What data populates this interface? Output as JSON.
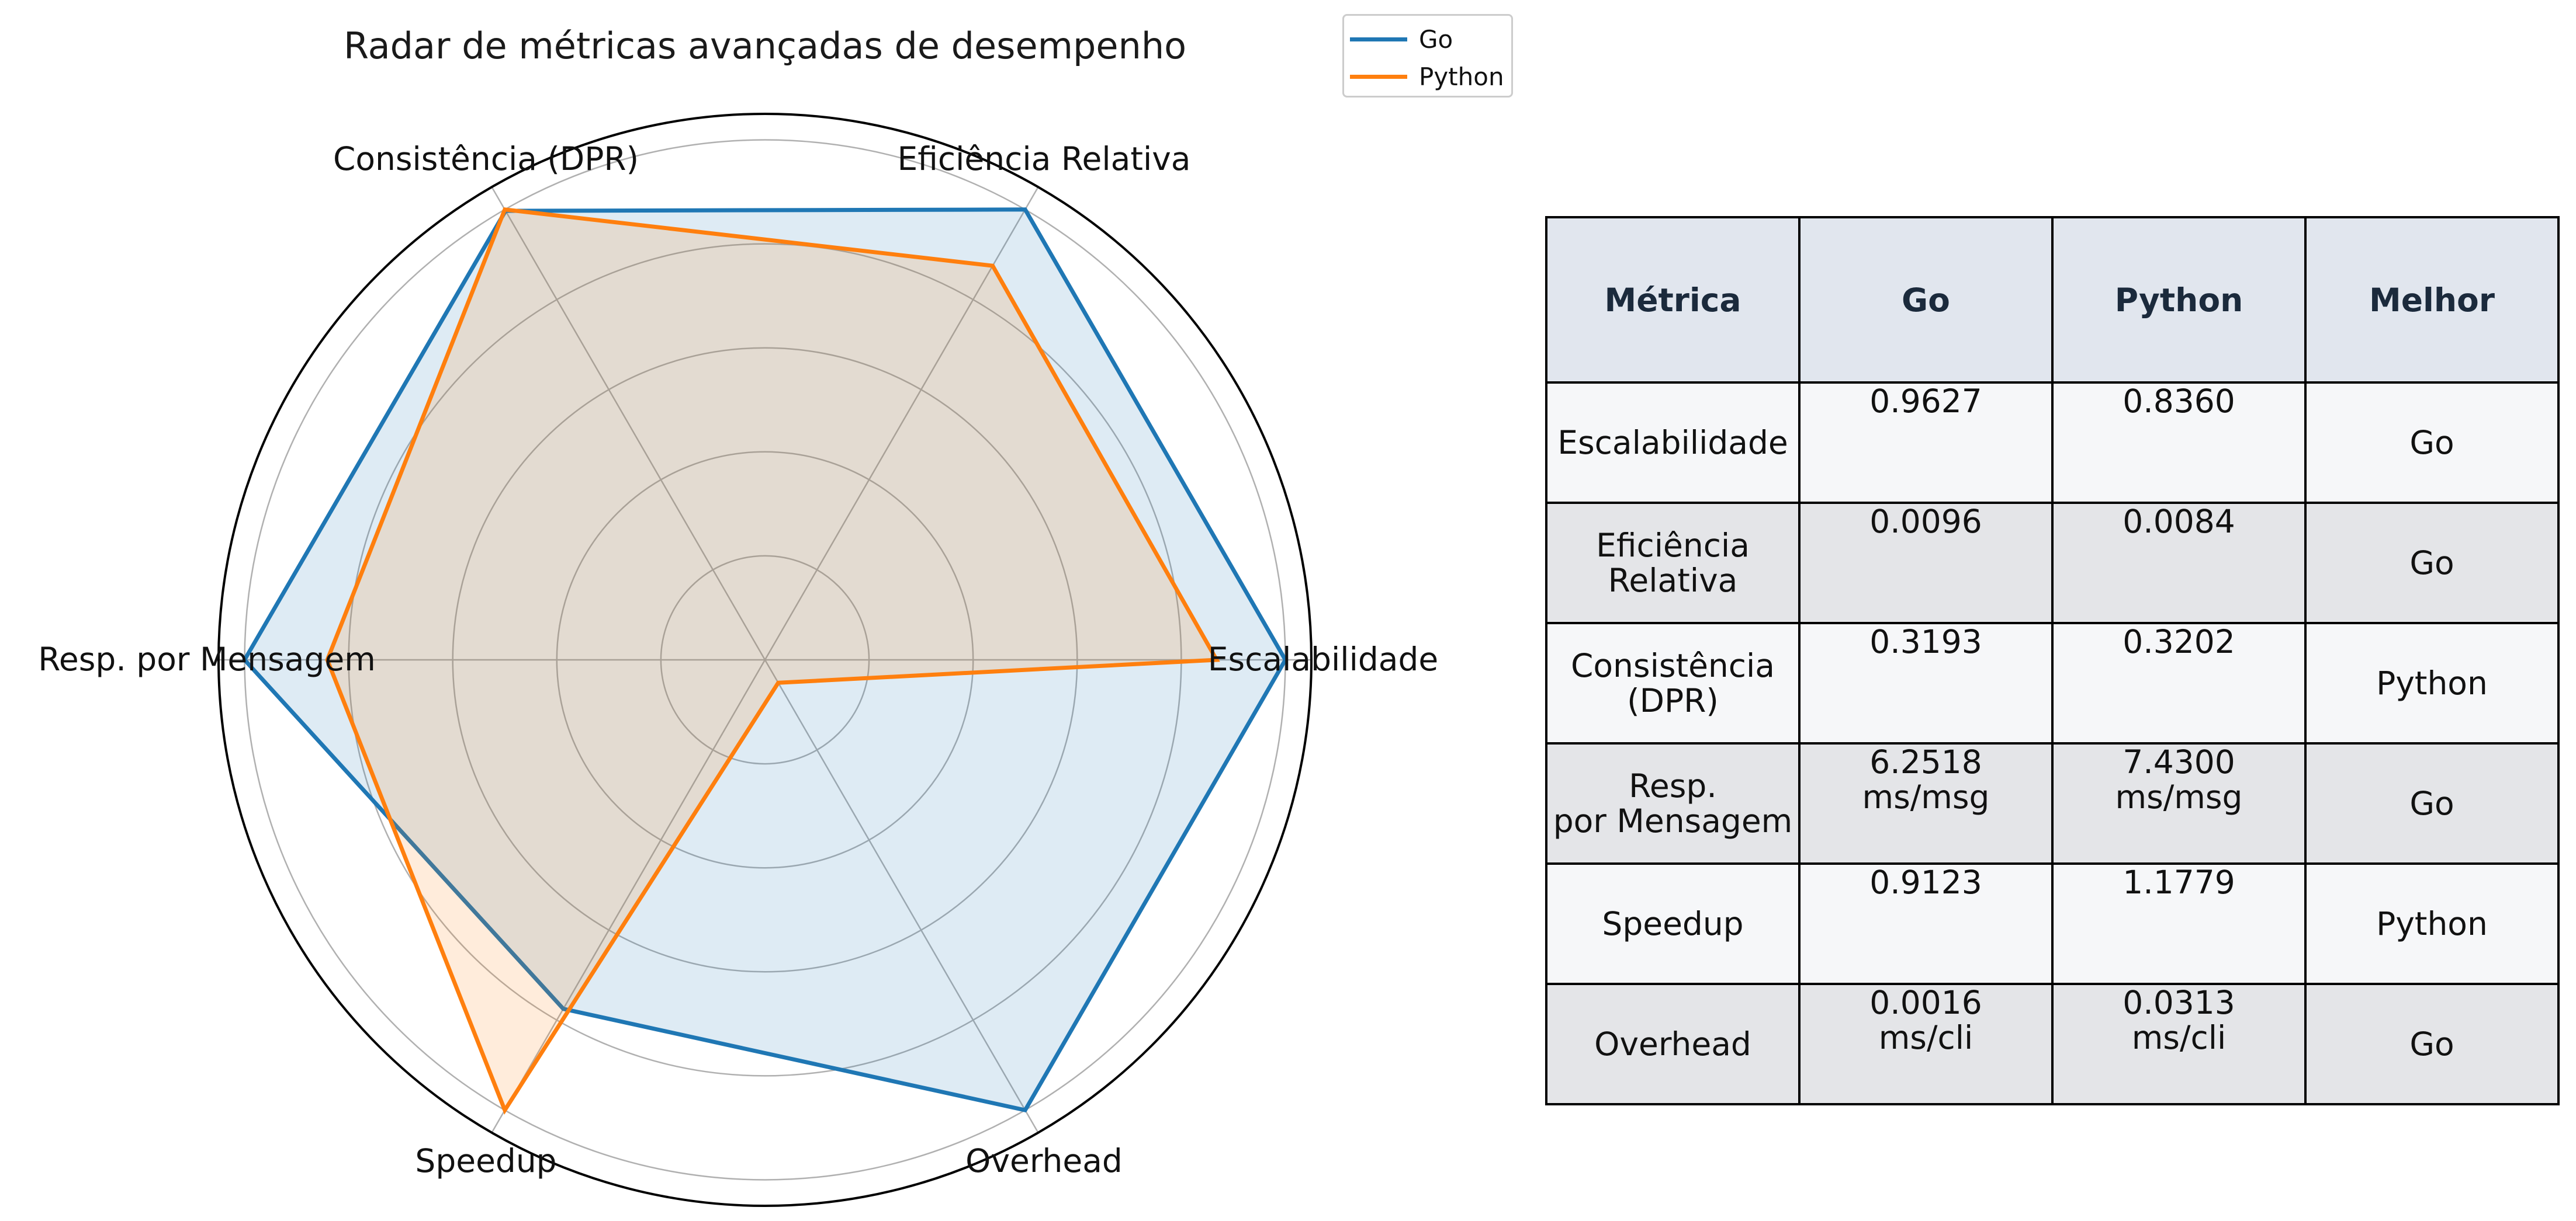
{
  "chart_data": {
    "type": "radar",
    "title": "Radar de métricas avançadas de desempenho",
    "axes": [
      "Escalabilidade",
      "Eficiência Relativa",
      "Consistência (DPR)",
      "Resp. por Mensagem",
      "Speedup",
      "Overhead"
    ],
    "rlim": [
      0,
      1.05
    ],
    "grid_levels": [
      0.2,
      0.4,
      0.6,
      0.8,
      1.0
    ],
    "grid": true,
    "legend_position": "top-right",
    "series": [
      {
        "name": "Go",
        "color": "#1f77b4",
        "values": [
          1.0,
          1.0,
          0.997,
          1.0,
          0.775,
          1.0
        ]
      },
      {
        "name": "Python",
        "color": "#ff7f0e",
        "values": [
          0.868,
          0.875,
          1.0,
          0.841,
          1.0,
          0.051
        ]
      }
    ]
  },
  "table": {
    "headers": [
      "Métrica",
      "Go",
      "Python",
      "Melhor"
    ],
    "rows": [
      {
        "metric": "Escalabilidade",
        "go": "0.9627",
        "python": "0.8360",
        "best": "Go"
      },
      {
        "metric": "Eficiência\nRelativa",
        "go": "0.0096",
        "python": "0.0084",
        "best": "Go"
      },
      {
        "metric": "Consistência\n(DPR)",
        "go": "0.3193",
        "python": "0.3202",
        "best": "Python"
      },
      {
        "metric": "Resp.\npor Mensagem",
        "go": "6.2518\nms/msg",
        "python": "7.4300\nms/msg",
        "best": "Go"
      },
      {
        "metric": "Speedup",
        "go": "0.9123",
        "python": "1.1779",
        "best": "Python"
      },
      {
        "metric": "Overhead",
        "go": "0.0016\nms/cli",
        "python": "0.0313\nms/cli",
        "best": "Go"
      }
    ]
  }
}
